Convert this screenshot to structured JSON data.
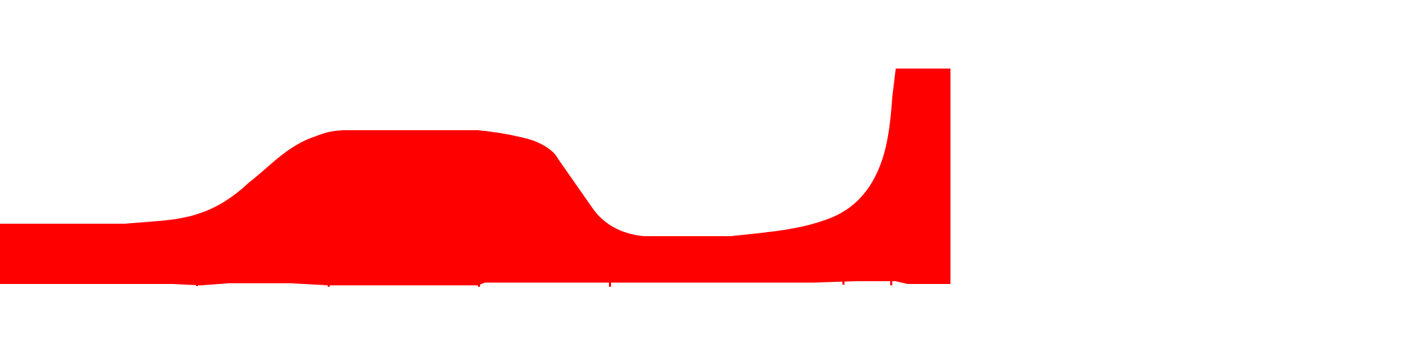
{
  "colors": {
    "background": "#ffffff",
    "shape_fill": "#ff0000"
  },
  "shape": {
    "kind": "filled-red-silhouette"
  }
}
